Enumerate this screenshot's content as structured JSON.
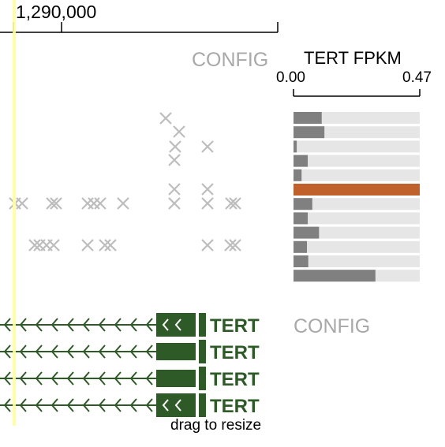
{
  "ruler": {
    "position_label": "1,290,000"
  },
  "snp_track": {
    "config_label": "CONFIG",
    "marker_color": "#bdbdbd"
  },
  "expression": {
    "title": "TERT FPKM",
    "scale_min": "0.00",
    "scale_max": "0.47",
    "max_value": 0.47,
    "values": [
      0.105,
      0.115,
      0.012,
      0.053,
      0.03,
      0.47,
      0.07,
      0.053,
      0.095,
      0.05,
      0.055,
      0.305
    ],
    "highlight_index": 5,
    "bar_color": "#808080",
    "highlight_color": "#c0602a",
    "track_color": "#e6e6e6"
  },
  "gene_track": {
    "config_label": "CONFIG",
    "gene_color": "#2d5a27",
    "transcripts": [
      {
        "name": "TERT"
      },
      {
        "name": "TERT"
      },
      {
        "name": "TERT"
      },
      {
        "name": "TERT"
      }
    ],
    "resize_hint": "drag to resize"
  },
  "cursor_color": "#ffff99"
}
